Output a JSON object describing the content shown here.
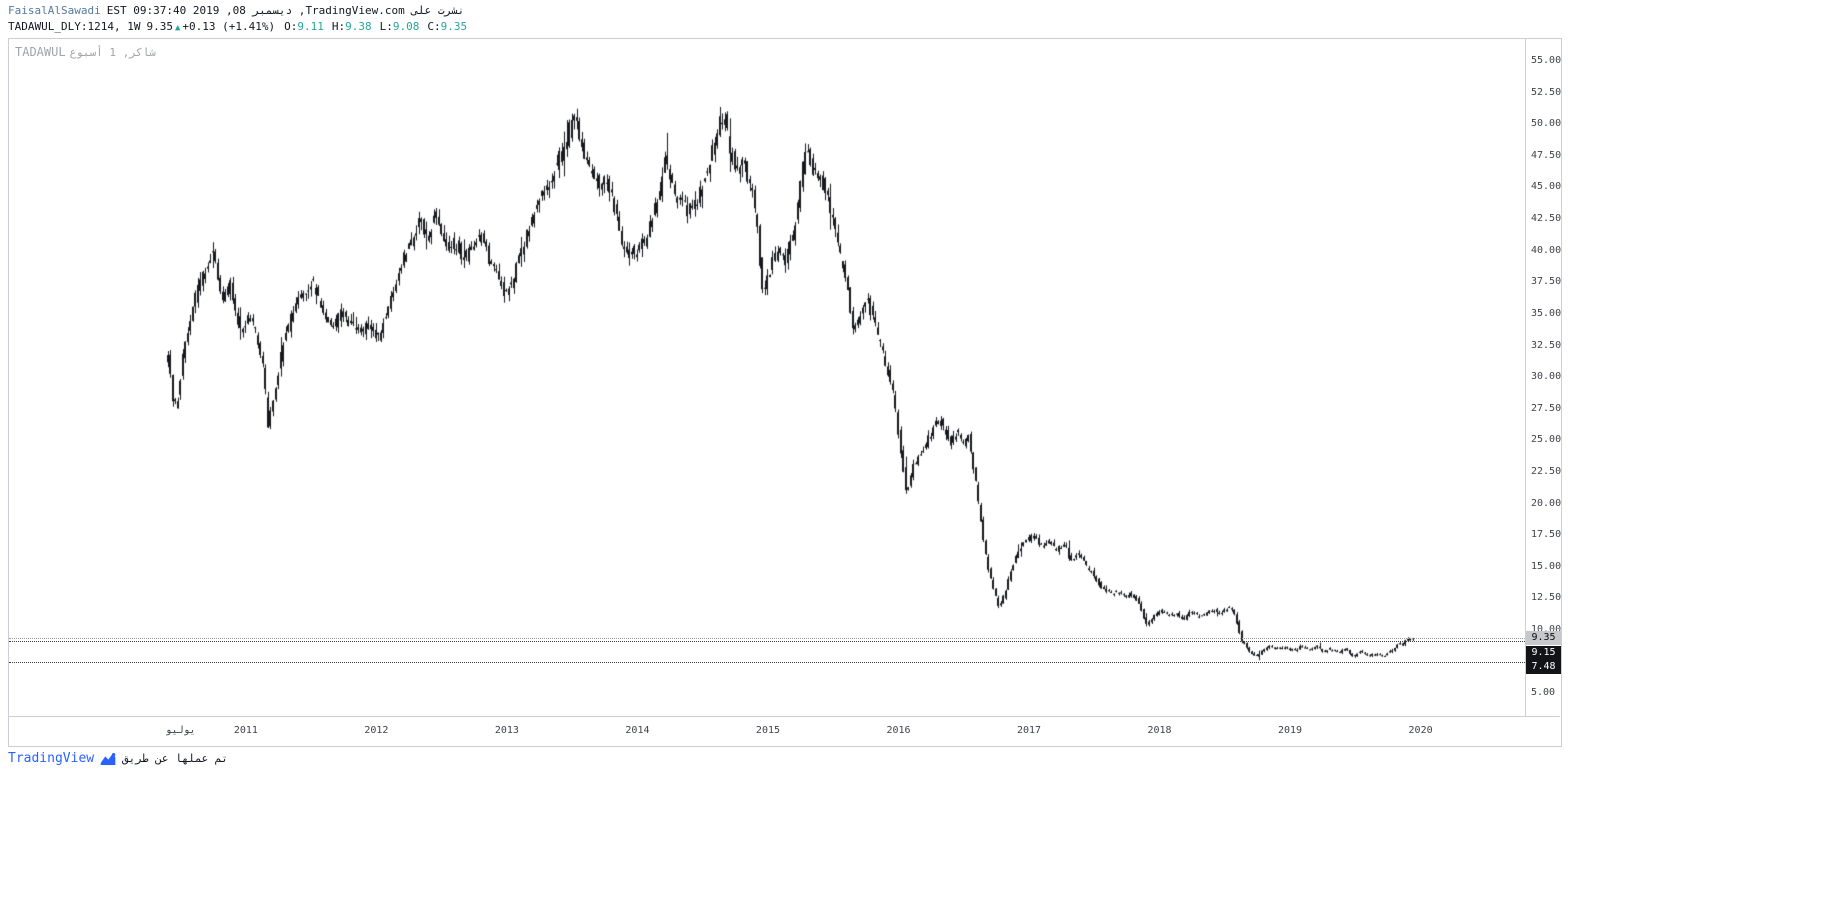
{
  "header": {
    "username": "FaisalAlSawadi",
    "published": "نشرت على TradingView.com, ديسمبر 08, 2019 09:37:40 EST",
    "symbol_tf": "TADAWUL_DLY:1214, 1W",
    "price": "9.35",
    "triangle": "▲",
    "change": "+0.13 (+1.41%)",
    "ohlc": [
      {
        "label": "O:",
        "value": "9.11"
      },
      {
        "label": "H:",
        "value": "9.38"
      },
      {
        "label": "L:",
        "value": "9.08"
      },
      {
        "label": "C:",
        "value": "9.35"
      }
    ]
  },
  "watermark": {
    "exchange": "TADAWUL",
    "desc": "شاكر, 1 أسبوع"
  },
  "footer": {
    "brand": "TradingView",
    "made_by": "تم عملها عن طريق"
  },
  "colors": {
    "accent_blue": "#2962ff",
    "username_blue": "#567a9e",
    "up_teal": "#26a69a",
    "candle": "#16181d",
    "border": "#ccced6",
    "axis_text": "#40434c",
    "level_label_bg": "#121317",
    "current_label_bg": "#c6c8cd"
  },
  "chart_data": {
    "type": "candlestick",
    "symbol": "TADAWUL_DLY:1214",
    "interval": "1W",
    "title": "TADAWUL شاكر, 1 أسبوع",
    "current_price": 9.35,
    "candle_color": "#16181d",
    "x_range": [
      2009.185,
      2020.8
    ],
    "y_range": [
      3.2,
      56.74
    ],
    "y_axis": {
      "min": 5,
      "max": 55,
      "step": 2.5
    },
    "x_axis": {
      "ticks": [
        {
          "t": 2010.5,
          "label": "يوليو"
        },
        {
          "t": 2011,
          "label": "2011"
        },
        {
          "t": 2012,
          "label": "2012"
        },
        {
          "t": 2013,
          "label": "2013"
        },
        {
          "t": 2014,
          "label": "2014"
        },
        {
          "t": 2015,
          "label": "2015"
        },
        {
          "t": 2016,
          "label": "2016"
        },
        {
          "t": 2017,
          "label": "2017"
        },
        {
          "t": 2018,
          "label": "2018"
        },
        {
          "t": 2019,
          "label": "2019"
        },
        {
          "t": 2020,
          "label": "2020"
        }
      ]
    },
    "levels": [
      {
        "price": 9.35,
        "label": "9.35",
        "style": "current"
      },
      {
        "price": 9.15,
        "label": "9.15",
        "style": "line"
      },
      {
        "price": 7.48,
        "label": "7.48",
        "style": "line"
      }
    ],
    "price_path": [
      [
        2010.4,
        31.5
      ],
      [
        2010.44,
        28.2
      ],
      [
        2010.47,
        27.6
      ],
      [
        2010.52,
        32.3
      ],
      [
        2010.58,
        34.5
      ],
      [
        2010.62,
        36.8
      ],
      [
        2010.69,
        38.4
      ],
      [
        2010.74,
        39.9
      ],
      [
        2010.78,
        38.1
      ],
      [
        2010.82,
        36.2
      ],
      [
        2010.88,
        37.3
      ],
      [
        2010.93,
        34.6
      ],
      [
        2010.97,
        33.8
      ],
      [
        2011.03,
        34.8
      ],
      [
        2011.08,
        33.5
      ],
      [
        2011.13,
        31.2
      ],
      [
        2011.17,
        26.2
      ],
      [
        2011.21,
        28.3
      ],
      [
        2011.28,
        32.5
      ],
      [
        2011.36,
        35.2
      ],
      [
        2011.44,
        36.5
      ],
      [
        2011.51,
        37.6
      ],
      [
        2011.58,
        35.3
      ],
      [
        2011.66,
        33.6
      ],
      [
        2011.72,
        35.1
      ],
      [
        2011.79,
        34.3
      ],
      [
        2011.87,
        33.5
      ],
      [
        2011.95,
        34.2
      ],
      [
        2012.02,
        33.1
      ],
      [
        2012.09,
        35.8
      ],
      [
        2012.16,
        38.1
      ],
      [
        2012.24,
        40.3
      ],
      [
        2012.3,
        41.2
      ],
      [
        2012.34,
        42.7
      ],
      [
        2012.39,
        40.6
      ],
      [
        2012.45,
        43.1
      ],
      [
        2012.51,
        40.3
      ],
      [
        2012.6,
        40.6
      ],
      [
        2012.67,
        39.4
      ],
      [
        2012.73,
        40.1
      ],
      [
        2012.8,
        41.2
      ],
      [
        2012.87,
        39.1
      ],
      [
        2012.93,
        38.2
      ],
      [
        2012.99,
        36.3
      ],
      [
        2013.04,
        37.4
      ],
      [
        2013.1,
        39.8
      ],
      [
        2013.16,
        41.5
      ],
      [
        2013.21,
        43
      ],
      [
        2013.26,
        44.4
      ],
      [
        2013.33,
        45.6
      ],
      [
        2013.39,
        47.2
      ],
      [
        2013.44,
        48.1
      ],
      [
        2013.5,
        50.4
      ],
      [
        2013.52,
        50.9
      ],
      [
        2013.55,
        48.8
      ],
      [
        2013.6,
        47.5
      ],
      [
        2013.65,
        46
      ],
      [
        2013.71,
        45.2
      ],
      [
        2013.77,
        45.6
      ],
      [
        2013.83,
        43.1
      ],
      [
        2013.88,
        40.4
      ],
      [
        2013.94,
        39.6
      ],
      [
        2014,
        40.1
      ],
      [
        2014.06,
        40.8
      ],
      [
        2014.11,
        42.6
      ],
      [
        2014.17,
        44.7
      ],
      [
        2014.21,
        47.1
      ],
      [
        2014.26,
        45.2
      ],
      [
        2014.32,
        44
      ],
      [
        2014.38,
        43.2
      ],
      [
        2014.44,
        43.6
      ],
      [
        2014.5,
        45.2
      ],
      [
        2014.55,
        47.1
      ],
      [
        2014.61,
        49.5
      ],
      [
        2014.66,
        50.7
      ],
      [
        2014.71,
        48
      ],
      [
        2014.76,
        46.4
      ],
      [
        2014.82,
        46.7
      ],
      [
        2014.87,
        45
      ],
      [
        2014.92,
        41.6
      ],
      [
        2014.96,
        36.6
      ],
      [
        2015.01,
        38.3
      ],
      [
        2015.07,
        40.2
      ],
      [
        2015.12,
        39.1
      ],
      [
        2015.18,
        40.7
      ],
      [
        2015.24,
        44.6
      ],
      [
        2015.29,
        48.3
      ],
      [
        2015.33,
        46.7
      ],
      [
        2015.38,
        45.9
      ],
      [
        2015.43,
        45.1
      ],
      [
        2015.48,
        43
      ],
      [
        2015.55,
        39.8
      ],
      [
        2015.61,
        37
      ],
      [
        2015.66,
        33.5
      ],
      [
        2015.71,
        35.2
      ],
      [
        2015.76,
        36.3
      ],
      [
        2015.81,
        34.4
      ],
      [
        2015.87,
        32.4
      ],
      [
        2015.91,
        30.5
      ],
      [
        2015.95,
        29.2
      ],
      [
        2016,
        25.5
      ],
      [
        2016.06,
        20.7
      ],
      [
        2016.11,
        23
      ],
      [
        2016.16,
        23.8
      ],
      [
        2016.23,
        25.2
      ],
      [
        2016.3,
        26.8
      ],
      [
        2016.35,
        26
      ],
      [
        2016.4,
        24.9
      ],
      [
        2016.45,
        25.7
      ],
      [
        2016.5,
        24.5
      ],
      [
        2016.54,
        25.3
      ],
      [
        2016.6,
        21
      ],
      [
        2016.65,
        17
      ],
      [
        2016.71,
        13.8
      ],
      [
        2016.77,
        11.9
      ],
      [
        2016.82,
        13
      ],
      [
        2016.86,
        14.6
      ],
      [
        2016.92,
        16.2
      ],
      [
        2016.98,
        17.1
      ],
      [
        2017.04,
        17.6
      ],
      [
        2017.09,
        16.6
      ],
      [
        2017.15,
        17
      ],
      [
        2017.21,
        16.3
      ],
      [
        2017.27,
        16.8
      ],
      [
        2017.32,
        15.4
      ],
      [
        2017.38,
        16
      ],
      [
        2017.44,
        15
      ],
      [
        2017.5,
        14.2
      ],
      [
        2017.55,
        13.4
      ],
      [
        2017.61,
        12.9
      ],
      [
        2017.67,
        13
      ],
      [
        2017.73,
        12.6
      ],
      [
        2017.78,
        12.9
      ],
      [
        2017.84,
        12.2
      ],
      [
        2017.9,
        10.4
      ],
      [
        2017.96,
        11.1
      ],
      [
        2018.01,
        11.5
      ],
      [
        2018.07,
        11.1
      ],
      [
        2018.13,
        11.3
      ],
      [
        2018.18,
        10.8
      ],
      [
        2018.24,
        11.5
      ],
      [
        2018.3,
        11.1
      ],
      [
        2018.36,
        11.3
      ],
      [
        2018.42,
        11.6
      ],
      [
        2018.47,
        11.3
      ],
      [
        2018.53,
        11.9
      ],
      [
        2018.58,
        11.1
      ],
      [
        2018.63,
        9.2
      ],
      [
        2018.69,
        8.3
      ],
      [
        2018.75,
        7.9
      ],
      [
        2018.8,
        8.5
      ],
      [
        2018.85,
        8.7
      ],
      [
        2018.91,
        8.5
      ],
      [
        2018.97,
        8.7
      ],
      [
        2019.02,
        8.3
      ],
      [
        2019.08,
        8.7
      ],
      [
        2019.14,
        8.5
      ],
      [
        2019.2,
        8.7
      ],
      [
        2019.25,
        8.3
      ],
      [
        2019.31,
        8.5
      ],
      [
        2019.37,
        8.2
      ],
      [
        2019.43,
        8.5
      ],
      [
        2019.48,
        7.9
      ],
      [
        2019.54,
        8.3
      ],
      [
        2019.6,
        7.9
      ],
      [
        2019.66,
        8.2
      ],
      [
        2019.71,
        7.9
      ],
      [
        2019.77,
        8.3
      ],
      [
        2019.81,
        8.7
      ],
      [
        2019.87,
        9
      ],
      [
        2019.92,
        9.3
      ],
      [
        2019.94,
        9.35
      ]
    ]
  }
}
